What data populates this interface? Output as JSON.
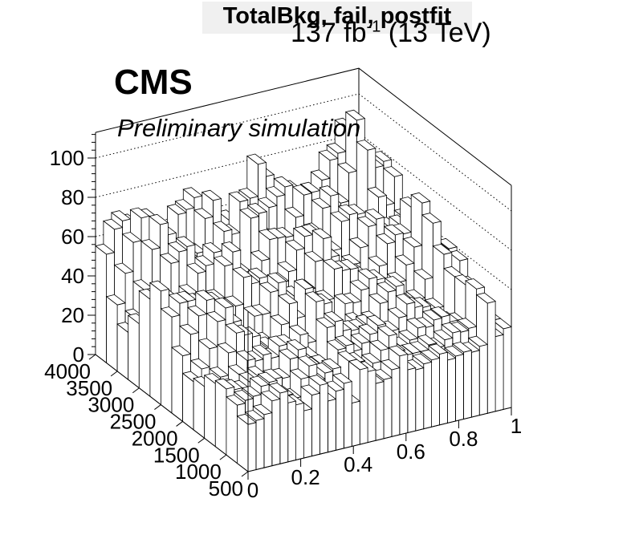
{
  "title": "TotalBkg, fail, postfit",
  "lumi_label": {
    "main": "137 fb",
    "sup": "-1",
    "energy": " (13 TeV)"
  },
  "experiment": "CMS",
  "status_label": "Preliminary simulation",
  "chart_data": {
    "type": "lego",
    "title": "TotalBkg, fail, postfit",
    "xlabel": "",
    "ylabel": "",
    "zlabel": "",
    "xlim": [
      0,
      1
    ],
    "ylim": [
      500,
      4000
    ],
    "zlim": [
      0,
      113
    ],
    "x_ticks": [
      "0",
      "0.2",
      "0.4",
      "0.6",
      "0.8",
      "1"
    ],
    "y_ticks": [
      "500",
      "1000",
      "1500",
      "2000",
      "2500",
      "3000",
      "3500",
      "4000"
    ],
    "z_ticks": [
      "0",
      "20",
      "40",
      "60",
      "80",
      "100"
    ],
    "grid": true,
    "line_color": "#000000",
    "fill_color": "#ffffff",
    "x_bins": 33,
    "mass_bins": [
      500,
      750,
      1000,
      1250,
      1500,
      1750,
      2000,
      2250,
      2500,
      2750,
      3000,
      3250,
      3500,
      3750,
      4000
    ],
    "front_row_mass_bin": [
      500,
      750
    ],
    "front_row_values": [
      24,
      25,
      27,
      33,
      36,
      30,
      28,
      24,
      31,
      35,
      26,
      30,
      33,
      22,
      38,
      36,
      29,
      30,
      34,
      40,
      32,
      31,
      33,
      34,
      36,
      32,
      33,
      34,
      33,
      35,
      56,
      38,
      41
    ]
  }
}
